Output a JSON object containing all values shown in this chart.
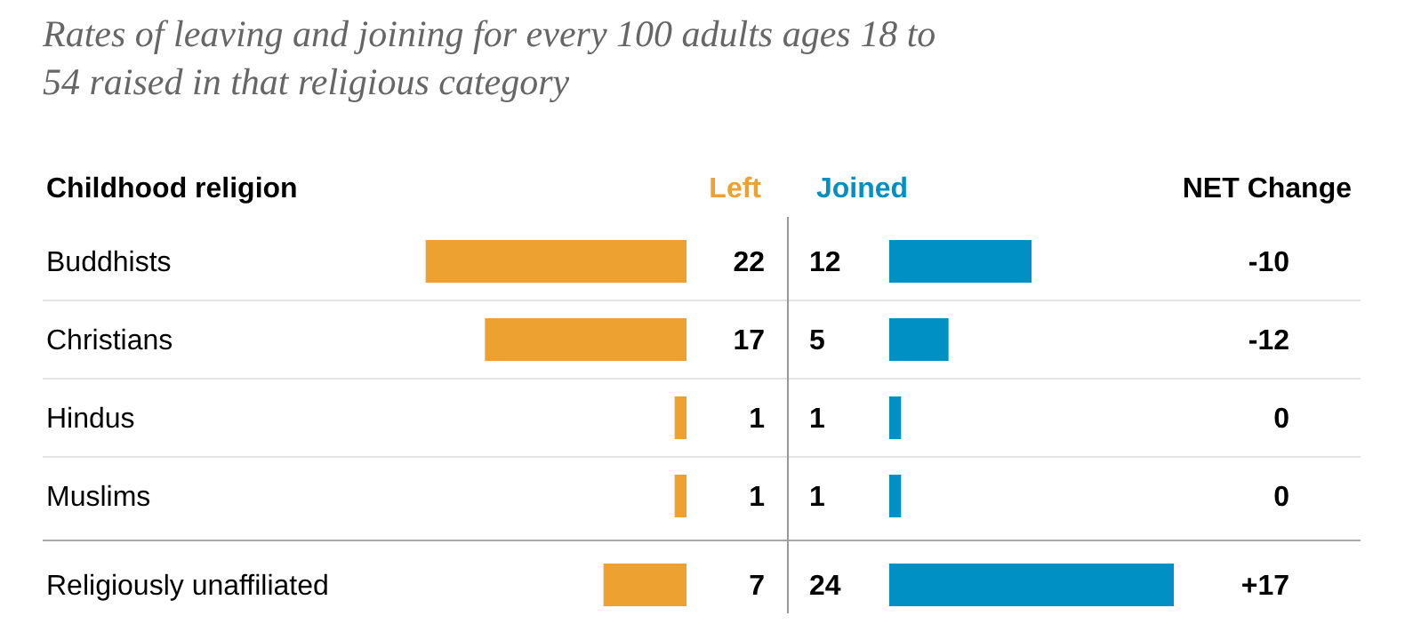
{
  "chart_data": [
    {
      "type": "bar",
      "orientation": "horizontal",
      "title": "Rates of leaving and joining for every 100 adults ages 18 to 54 raised in that religious category",
      "ylabel": "Childhood religion",
      "categories": [
        "Buddhists",
        "Christians",
        "Hindus",
        "Muslims",
        "Religiously unaffiliated"
      ],
      "series": [
        {
          "name": "Left",
          "color": "#eca131",
          "values": [
            22,
            17,
            1,
            1,
            7
          ]
        }
      ],
      "data_labels": true,
      "legend": "top"
    },
    {
      "type": "bar",
      "orientation": "horizontal",
      "categories": [
        null,
        null,
        null,
        null,
        null
      ],
      "series": [
        {
          "name": "Joined",
          "color": "#0090c4",
          "values": [
            12,
            5,
            1,
            1,
            24
          ]
        }
      ],
      "data_labels": true,
      "legend": "top",
      "annotations": [
        "NET Change",
        "-10",
        "-12",
        "0",
        "0",
        "+17"
      ]
    }
  ]
}
